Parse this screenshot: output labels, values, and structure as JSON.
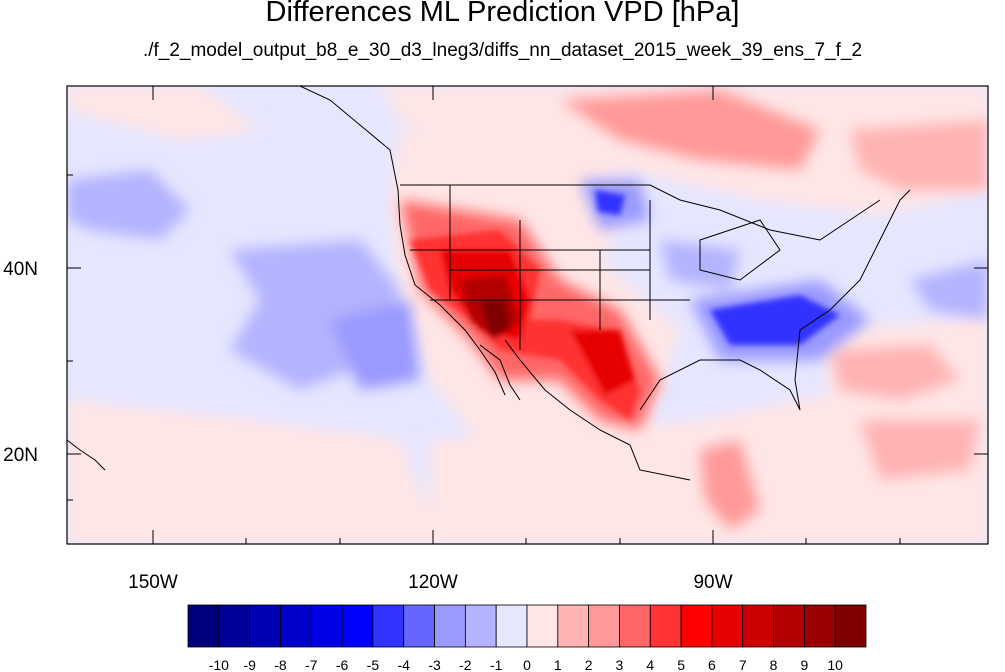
{
  "title": "Differences ML Prediction VPD [hPa]",
  "subtitle": "./f_2_model_output_b8_e_30_d3_lneg3/diffs_nn_dataset_2015_week_39_ens_7_f_2",
  "axes": {
    "x_ticks": [
      "150W",
      "120W",
      "90W"
    ],
    "y_ticks": [
      "40N",
      "20N"
    ]
  },
  "colorbar": {
    "labels": [
      "-10",
      "-9",
      "-8",
      "-7",
      "-6",
      "-5",
      "-4",
      "-3",
      "-2",
      "-1",
      "0",
      "1",
      "2",
      "3",
      "4",
      "5",
      "6",
      "7",
      "8",
      "9",
      "10"
    ],
    "colors": [
      "#00007f",
      "#000099",
      "#0000b3",
      "#0000cc",
      "#0000e6",
      "#0000ff",
      "#3333ff",
      "#6666ff",
      "#9999ff",
      "#b3b3ff",
      "#e6e6ff",
      "#ffe6e6",
      "#ffb3b3",
      "#ff9999",
      "#ff6666",
      "#ff3333",
      "#ff0000",
      "#e60000",
      "#cc0000",
      "#b30000",
      "#990000",
      "#7f0000"
    ]
  }
}
